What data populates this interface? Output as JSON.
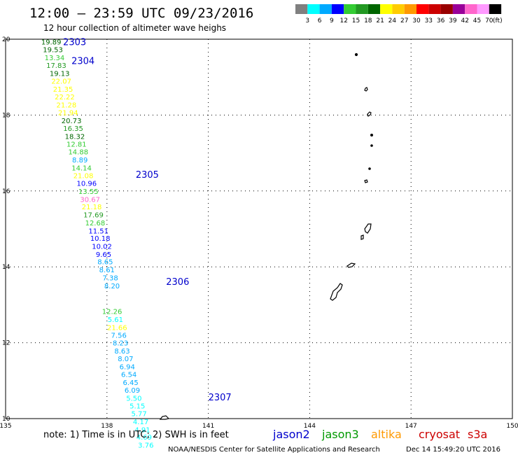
{
  "title": "12:00 — 23:59 UTC 09/23/2016",
  "subtitle": "12 hour collection of altimeter wave heighs",
  "colorbar": {
    "labels": [
      "3",
      "6",
      "9",
      "12",
      "15",
      "18",
      "21",
      "24",
      "27",
      "30",
      "33",
      "36",
      "39",
      "42",
      "45",
      "70"
    ],
    "unit": "(ft)",
    "colors": [
      "#808080",
      "#00ffff",
      "#00aaff",
      "#0000ff",
      "#33cc33",
      "#229922",
      "#006600",
      "#ffff00",
      "#ffcc00",
      "#ff9900",
      "#ff0000",
      "#cc0000",
      "#990000",
      "#990099",
      "#ff66cc",
      "#ff99ff",
      "#000000"
    ]
  },
  "note": "note: 1) Time is in UTC; 2) SWH is in feet",
  "credit": "NOAA/NESDIS Center for Satellite Applications and Research",
  "timestamp": "Dec 14 15:49:20 UTC 2016",
  "legend": [
    {
      "name": "jason2",
      "color": "#0000cc"
    },
    {
      "name": "jason3",
      "color": "#009900"
    },
    {
      "name": "altika",
      "color": "#ff9900"
    },
    {
      "name": "cryosat",
      "color": "#cc0000"
    },
    {
      "name": "s3a",
      "color": "#cc0000"
    }
  ],
  "chart_data": {
    "type": "scatter",
    "title": "12:00 — 23:59 UTC 09/23/2016",
    "xlim": [
      135,
      150
    ],
    "ylim": [
      10,
      20
    ],
    "x_ticks": [
      "135",
      "138",
      "141",
      "144",
      "147",
      "150"
    ],
    "y_ticks": [
      "10",
      "12",
      "14",
      "16",
      "18",
      "20"
    ],
    "grid": true,
    "time_labels": [
      {
        "text": "2303",
        "lon": 136.7,
        "lat": 19.92,
        "color": "#0000cc"
      },
      {
        "text": "2304",
        "lon": 136.95,
        "lat": 19.42,
        "color": "#0000cc"
      },
      {
        "text": "2305",
        "lon": 138.85,
        "lat": 16.42,
        "color": "#0000cc"
      },
      {
        "text": "2306",
        "lon": 139.75,
        "lat": 13.6,
        "color": "#0000cc"
      },
      {
        "text": "2307",
        "lon": 141.0,
        "lat": 10.55,
        "color": "#0000cc"
      }
    ],
    "points": [
      {
        "lon": 136.35,
        "lat": 19.92,
        "swh": "19.89",
        "color": "#006600"
      },
      {
        "lon": 136.4,
        "lat": 19.71,
        "swh": "19.53",
        "color": "#006600"
      },
      {
        "lon": 136.45,
        "lat": 19.5,
        "swh": "13.34",
        "color": "#33cc33"
      },
      {
        "lon": 136.5,
        "lat": 19.3,
        "swh": "17.83",
        "color": "#229922"
      },
      {
        "lon": 136.6,
        "lat": 19.09,
        "swh": "19.13",
        "color": "#006600"
      },
      {
        "lon": 136.65,
        "lat": 18.88,
        "swh": "22.07",
        "color": "#ffff00"
      },
      {
        "lon": 136.7,
        "lat": 18.67,
        "swh": "21.35",
        "color": "#ffff00"
      },
      {
        "lon": 136.75,
        "lat": 18.47,
        "swh": "22.22",
        "color": "#ffff00"
      },
      {
        "lon": 136.8,
        "lat": 18.26,
        "swh": "21.28",
        "color": "#ffff00"
      },
      {
        "lon": 136.85,
        "lat": 18.05,
        "swh": "21.94",
        "color": "#ffff00"
      },
      {
        "lon": 136.95,
        "lat": 17.84,
        "swh": "20.73",
        "color": "#006600"
      },
      {
        "lon": 137.0,
        "lat": 17.64,
        "swh": "16.35",
        "color": "#229922"
      },
      {
        "lon": 137.05,
        "lat": 17.43,
        "swh": "18.32",
        "color": "#006600"
      },
      {
        "lon": 137.1,
        "lat": 17.22,
        "swh": "12.81",
        "color": "#33cc33"
      },
      {
        "lon": 137.15,
        "lat": 17.02,
        "swh": "14.88",
        "color": "#33cc33"
      },
      {
        "lon": 137.2,
        "lat": 16.81,
        "swh": "8.89",
        "color": "#00aaff"
      },
      {
        "lon": 137.25,
        "lat": 16.6,
        "swh": "14.14",
        "color": "#33cc33"
      },
      {
        "lon": 137.3,
        "lat": 16.39,
        "swh": "21.08",
        "color": "#ffff00"
      },
      {
        "lon": 137.4,
        "lat": 16.19,
        "swh": "10.96",
        "color": "#0000ff"
      },
      {
        "lon": 137.45,
        "lat": 15.98,
        "swh": "13.55",
        "color": "#33cc33"
      },
      {
        "lon": 137.5,
        "lat": 15.77,
        "swh": "30.67",
        "color": "#ff66cc"
      },
      {
        "lon": 137.55,
        "lat": 15.57,
        "swh": "21.18",
        "color": "#ffff00"
      },
      {
        "lon": 137.6,
        "lat": 15.36,
        "swh": "17.69",
        "color": "#229922"
      },
      {
        "lon": 137.65,
        "lat": 15.15,
        "swh": "12.68",
        "color": "#33cc33"
      },
      {
        "lon": 137.75,
        "lat": 14.94,
        "swh": "11.51",
        "color": "#0000ff"
      },
      {
        "lon": 137.8,
        "lat": 14.74,
        "swh": "10.18",
        "color": "#0000ff"
      },
      {
        "lon": 137.85,
        "lat": 14.53,
        "swh": "10.02",
        "color": "#0000ff"
      },
      {
        "lon": 137.9,
        "lat": 14.32,
        "swh": "9.65",
        "color": "#0000ff"
      },
      {
        "lon": 137.95,
        "lat": 14.12,
        "swh": "8.65",
        "color": "#00aaff"
      },
      {
        "lon": 138.0,
        "lat": 13.91,
        "swh": "8.61",
        "color": "#00aaff"
      },
      {
        "lon": 138.1,
        "lat": 13.7,
        "swh": "7.38",
        "color": "#00aaff"
      },
      {
        "lon": 138.15,
        "lat": 13.49,
        "swh": "8.20",
        "color": "#00aaff"
      },
      {
        "lon": 138.15,
        "lat": 12.81,
        "swh": "12.26",
        "color": "#33cc33"
      },
      {
        "lon": 138.25,
        "lat": 12.6,
        "swh": "5.61",
        "color": "#00ffff"
      },
      {
        "lon": 138.3,
        "lat": 12.39,
        "swh": "21.66",
        "color": "#ffff00"
      },
      {
        "lon": 138.35,
        "lat": 12.19,
        "swh": "7.56",
        "color": "#00aaff"
      },
      {
        "lon": 138.4,
        "lat": 11.98,
        "swh": "8.23",
        "color": "#00aaff"
      },
      {
        "lon": 138.45,
        "lat": 11.77,
        "swh": "8.63",
        "color": "#00aaff"
      },
      {
        "lon": 138.55,
        "lat": 11.57,
        "swh": "8.07",
        "color": "#00aaff"
      },
      {
        "lon": 138.6,
        "lat": 11.36,
        "swh": "6.94",
        "color": "#00aaff"
      },
      {
        "lon": 138.65,
        "lat": 11.15,
        "swh": "6.54",
        "color": "#00aaff"
      },
      {
        "lon": 138.7,
        "lat": 10.94,
        "swh": "6.45",
        "color": "#00aaff"
      },
      {
        "lon": 138.75,
        "lat": 10.74,
        "swh": "6.09",
        "color": "#00aaff"
      },
      {
        "lon": 138.8,
        "lat": 10.53,
        "swh": "5.50",
        "color": "#00ffff"
      },
      {
        "lon": 138.9,
        "lat": 10.32,
        "swh": "5.15",
        "color": "#00ffff"
      },
      {
        "lon": 138.95,
        "lat": 10.12,
        "swh": "5.77",
        "color": "#00ffff"
      },
      {
        "lon": 139.0,
        "lat": 9.91,
        "swh": "4.17",
        "color": "#00ffff"
      },
      {
        "lon": 139.05,
        "lat": 9.7,
        "swh": "4.91",
        "color": "#00ffff"
      },
      {
        "lon": 139.1,
        "lat": 9.5,
        "swh": "4.69",
        "color": "#00ffff"
      },
      {
        "lon": 139.15,
        "lat": 9.29,
        "swh": "3.76",
        "color": "#00ffff"
      }
    ]
  }
}
